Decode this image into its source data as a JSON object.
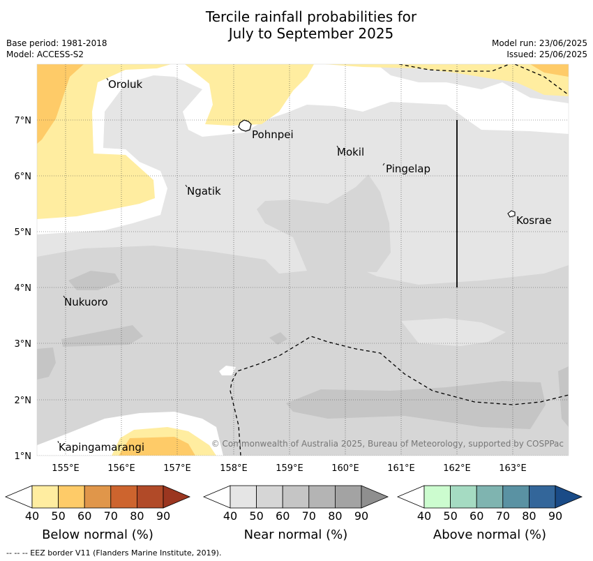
{
  "title": {
    "line1": "Tercile rainfall probabilities for",
    "line2": "July to September 2025"
  },
  "meta": {
    "base_period": "Base period: 1981-2018",
    "model": "Model: ACCESS-S2",
    "model_run": "Model run: 23/06/2025",
    "issued": "Issued: 25/06/2025"
  },
  "map": {
    "lon_labels": [
      "155°E",
      "156°E",
      "157°E",
      "158°E",
      "159°E",
      "160°E",
      "161°E",
      "162°E",
      "163°E"
    ],
    "lat_labels": [
      "7°N",
      "6°N",
      "5°N",
      "4°N",
      "3°N",
      "2°N",
      "1°N"
    ],
    "places": [
      "Oroluk",
      "Pohnpei",
      "Mokil",
      "Pingelap",
      "Ngatik",
      "Kosrae",
      "Nukuoro",
      "Kapingamarangi"
    ],
    "copyright": "© Commonwealth of Australia 2025, Bureau of Meteorology, supported by COSPPac"
  },
  "legends": [
    {
      "title": "Below normal (%)",
      "ticks": [
        "40",
        "50",
        "60",
        "70",
        "80",
        "90"
      ],
      "colors": [
        "#ffeda0",
        "#fecb68",
        "#e0964a",
        "#cd642e",
        "#b14a28",
        "#9b3620"
      ]
    },
    {
      "title": "Near normal (%)",
      "ticks": [
        "40",
        "50",
        "60",
        "70",
        "80",
        "90"
      ],
      "colors": [
        "#e5e5e5",
        "#d6d6d6",
        "#c5c5c5",
        "#b4b4b4",
        "#a3a3a3",
        "#8f8f8f"
      ]
    },
    {
      "title": "Above normal (%)",
      "ticks": [
        "40",
        "50",
        "60",
        "70",
        "80",
        "90"
      ],
      "colors": [
        "#ccfccf",
        "#a5dbc2",
        "#7fb4b0",
        "#5a92a3",
        "#33669a",
        "#1a4b87"
      ]
    }
  ],
  "footer": "--  --  -- EEZ border V11 (Flanders Marine Institute, 2019)."
}
